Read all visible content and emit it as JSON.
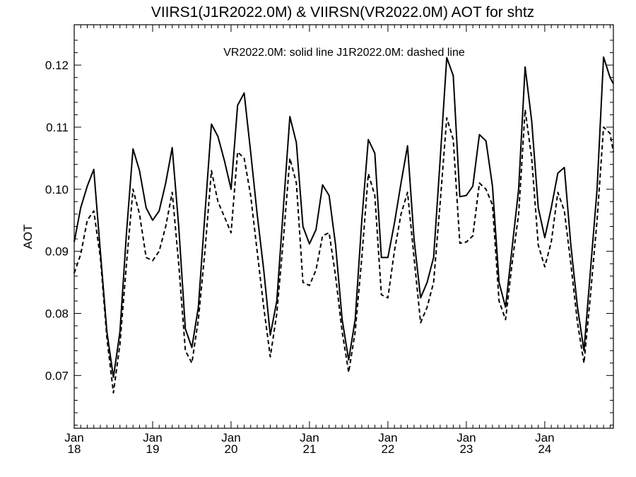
{
  "chart_data": {
    "type": "line",
    "title": "VIIRS1(J1R2022.0M) & VIIRSN(VR2022.0M)  AOT for shtz",
    "legend_text": "VR2022.0M: solid line   J1R2022.0M: dashed line",
    "ylabel": "AOT",
    "xlabel": "",
    "ylim": [
      0.0615,
      0.1265
    ],
    "yticks": [
      "0.07",
      "0.08",
      "0.09",
      "0.10",
      "0.11",
      "0.12"
    ],
    "ytick_values": [
      0.07,
      0.08,
      0.09,
      0.1,
      0.11,
      0.12
    ],
    "xticks": [
      {
        "month": "Jan",
        "day": "18"
      },
      {
        "month": "Jan",
        "day": "19"
      },
      {
        "month": "Jan",
        "day": "20"
      },
      {
        "month": "Jan",
        "day": "21"
      },
      {
        "month": "Jan",
        "day": "22"
      },
      {
        "month": "Jan",
        "day": "23"
      },
      {
        "month": "Jan",
        "day": "24"
      }
    ],
    "xlim_days": [
      18,
      24.875
    ],
    "x_days": [
      18.0,
      18.083,
      18.167,
      18.25,
      18.333,
      18.417,
      18.5,
      18.583,
      18.667,
      18.75,
      18.833,
      18.917,
      19.0,
      19.083,
      19.167,
      19.25,
      19.333,
      19.417,
      19.5,
      19.583,
      19.667,
      19.75,
      19.833,
      19.917,
      20.0,
      20.083,
      20.167,
      20.25,
      20.333,
      20.417,
      20.5,
      20.583,
      20.667,
      20.75,
      20.833,
      20.917,
      21.0,
      21.083,
      21.167,
      21.25,
      21.333,
      21.417,
      21.5,
      21.583,
      21.667,
      21.75,
      21.833,
      21.917,
      22.0,
      22.083,
      22.167,
      22.25,
      22.333,
      22.417,
      22.5,
      22.583,
      22.667,
      22.75,
      22.833,
      22.917,
      23.0,
      23.083,
      23.167,
      23.25,
      23.333,
      23.417,
      23.5,
      23.583,
      23.667,
      23.75,
      23.833,
      23.917,
      24.0,
      24.083,
      24.167,
      24.25,
      24.333,
      24.417,
      24.5,
      24.583,
      24.667,
      24.75,
      24.833,
      24.875
    ],
    "series": [
      {
        "name": "VR2022.0M",
        "style": "solid",
        "color": "#000000",
        "values": [
          0.0915,
          0.097,
          0.1005,
          0.1032,
          0.09,
          0.077,
          0.0697,
          0.077,
          0.093,
          0.1065,
          0.103,
          0.097,
          0.095,
          0.0965,
          0.101,
          0.1067,
          0.094,
          0.0775,
          0.0745,
          0.081,
          0.096,
          0.1105,
          0.1085,
          0.1045,
          0.1,
          0.1135,
          0.1155,
          0.106,
          0.096,
          0.087,
          0.0765,
          0.082,
          0.097,
          0.1117,
          0.1075,
          0.094,
          0.0912,
          0.0935,
          0.1007,
          0.099,
          0.091,
          0.079,
          0.0725,
          0.079,
          0.095,
          0.108,
          0.1058,
          0.089,
          0.089,
          0.0945,
          0.101,
          0.107,
          0.092,
          0.0825,
          0.085,
          0.089,
          0.105,
          0.1212,
          0.1183,
          0.0988,
          0.099,
          0.1005,
          0.1088,
          0.1078,
          0.1005,
          0.085,
          0.081,
          0.0905,
          0.1,
          0.1197,
          0.111,
          0.097,
          0.0922,
          0.097,
          0.1026,
          0.1035,
          0.091,
          0.081,
          0.074,
          0.087,
          0.1,
          0.1213,
          0.118,
          0.117
        ]
      },
      {
        "name": "J1R2022.0M",
        "style": "dashed",
        "color": "#000000",
        "values": [
          0.0865,
          0.0895,
          0.095,
          0.0965,
          0.089,
          0.076,
          0.0672,
          0.075,
          0.088,
          0.1,
          0.096,
          0.089,
          0.0885,
          0.09,
          0.094,
          0.0995,
          0.088,
          0.074,
          0.072,
          0.079,
          0.09,
          0.103,
          0.098,
          0.0955,
          0.093,
          0.106,
          0.105,
          0.099,
          0.09,
          0.081,
          0.073,
          0.08,
          0.092,
          0.105,
          0.101,
          0.085,
          0.0845,
          0.087,
          0.0925,
          0.093,
          0.086,
          0.077,
          0.0705,
          0.077,
          0.089,
          0.1025,
          0.099,
          0.083,
          0.0825,
          0.09,
          0.096,
          0.0995,
          0.089,
          0.0785,
          0.081,
          0.085,
          0.098,
          0.1115,
          0.108,
          0.0913,
          0.0915,
          0.0925,
          0.101,
          0.1,
          0.0975,
          0.082,
          0.079,
          0.088,
          0.096,
          0.1128,
          0.105,
          0.091,
          0.0875,
          0.0915,
          0.0995,
          0.0965,
          0.088,
          0.0785,
          0.072,
          0.083,
          0.095,
          0.11,
          0.109,
          0.106
        ]
      }
    ],
    "grid": false,
    "legend_position": "top-center"
  }
}
